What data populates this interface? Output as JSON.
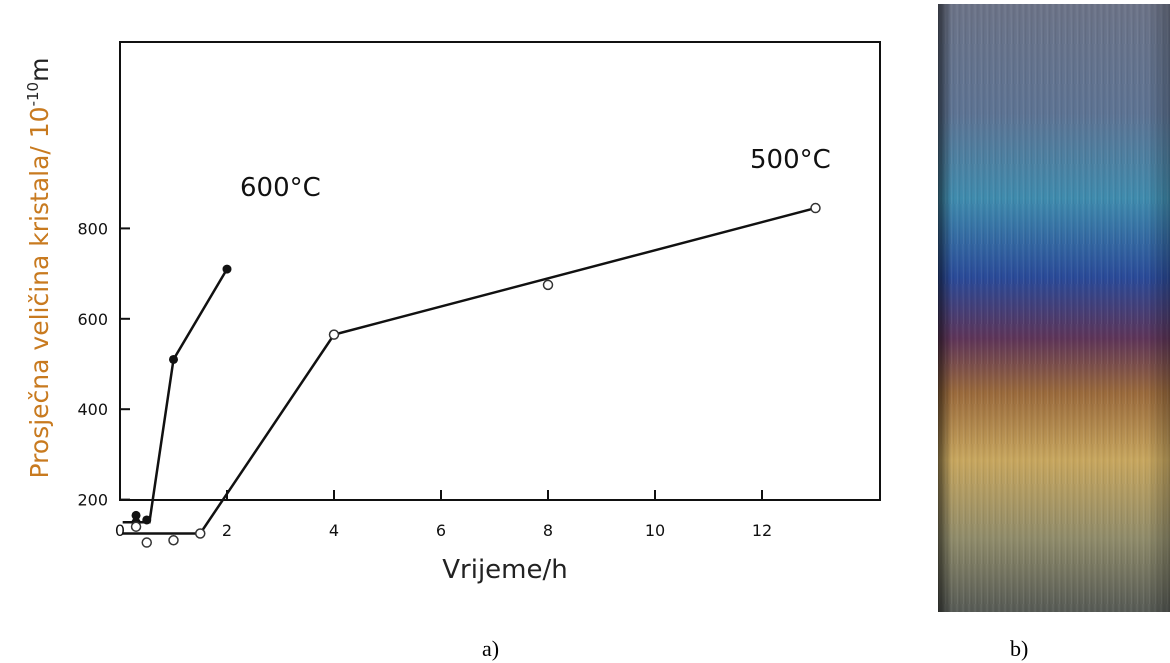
{
  "chart_data": {
    "type": "line",
    "xlabel": "Vrijeme/h",
    "ylabel": "Prosječna veličina kristala/ 10",
    "ylabel_exp": "-10",
    "ylabel_unit": "m",
    "xlim": [
      0,
      14
    ],
    "ylim": [
      0,
      1000
    ],
    "xticks": [
      0,
      2,
      4,
      6,
      8,
      10,
      12
    ],
    "yticks": [
      200,
      400,
      600,
      800
    ],
    "grid": false,
    "series": [
      {
        "name": "600 °C",
        "marker": "filled-circle",
        "points": [
          [
            0.3,
            165
          ],
          [
            0.5,
            155
          ],
          [
            1.0,
            510
          ],
          [
            2.0,
            710
          ]
        ],
        "extra_points": [
          [
            0.3,
            150
          ]
        ],
        "line": [
          [
            0.05,
            150
          ],
          [
            0.55,
            150
          ],
          [
            1.0,
            510
          ],
          [
            2.0,
            710
          ]
        ]
      },
      {
        "name": "500 °C",
        "marker": "open-circle",
        "points": [
          [
            0.3,
            140
          ],
          [
            0.5,
            105
          ],
          [
            1.0,
            110
          ],
          [
            1.5,
            125
          ],
          [
            4.0,
            565
          ],
          [
            8.0,
            675
          ],
          [
            13.0,
            845
          ]
        ],
        "line": [
          [
            0.05,
            125
          ],
          [
            1.5,
            125
          ],
          [
            4.0,
            565
          ],
          [
            13.0,
            845
          ]
        ]
      }
    ],
    "ylabel_color": "#c87a1f"
  },
  "captions": {
    "a": "a)",
    "b": "b)"
  },
  "photo": {
    "description_colors": [
      "#5d6f88",
      "#3a8aa8",
      "#27448f",
      "#6a3550",
      "#b0823c",
      "#c6a65c",
      "#7c7c62"
    ]
  }
}
